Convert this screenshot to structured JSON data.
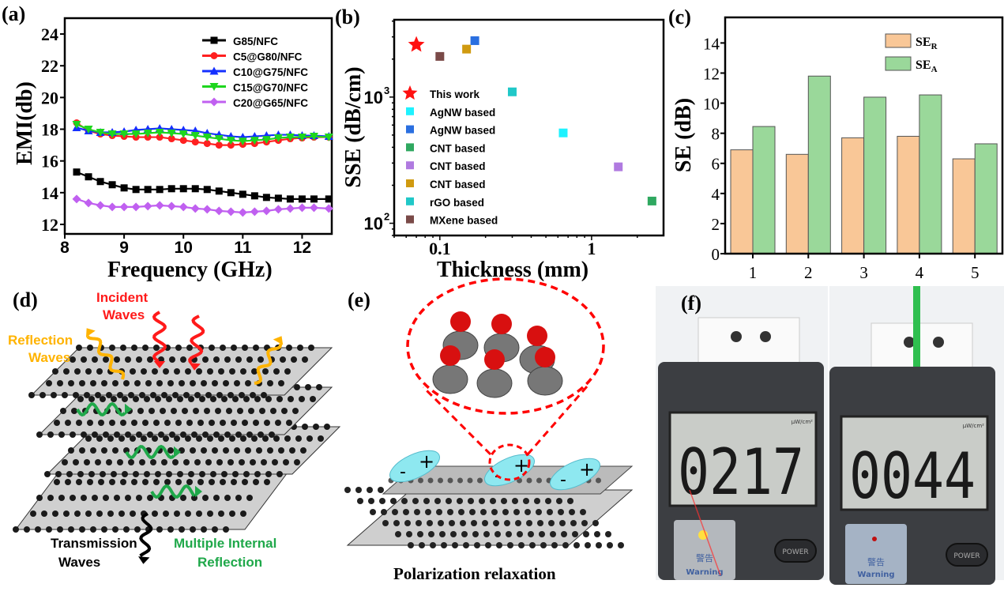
{
  "panels": {
    "a": "(a)",
    "b": "(b)",
    "c": "(c)",
    "d": "(d)",
    "e": "(e)",
    "f": "(f)"
  },
  "chart_data": [
    {
      "type": "line",
      "title": "",
      "xlabel": "Frequency (GHz)",
      "ylabel": "EMI(db)",
      "xlim": [
        8,
        12.5
      ],
      "ylim": [
        11.4,
        25
      ],
      "xticks": [
        8,
        9,
        10,
        11,
        12
      ],
      "yticks": [
        12,
        14,
        16,
        18,
        20,
        22,
        24
      ],
      "legend_position": "top-right",
      "x": [
        8.2,
        8.4,
        8.6,
        8.8,
        9.0,
        9.2,
        9.4,
        9.6,
        9.8,
        10.0,
        10.2,
        10.4,
        10.6,
        10.8,
        11.0,
        11.2,
        11.4,
        11.6,
        11.8,
        12.0,
        12.2,
        12.45
      ],
      "series": [
        {
          "name": "G85/NFC",
          "color": "#000000",
          "marker": "square",
          "values": [
            15.3,
            15.0,
            14.7,
            14.5,
            14.3,
            14.2,
            14.2,
            14.2,
            14.25,
            14.25,
            14.25,
            14.2,
            14.1,
            14.0,
            13.9,
            13.8,
            13.7,
            13.65,
            13.6,
            13.6,
            13.6,
            13.6
          ]
        },
        {
          "name": "C5@G80/NFC",
          "color": "#ff2020",
          "marker": "circle",
          "values": [
            18.4,
            17.9,
            17.7,
            17.6,
            17.55,
            17.5,
            17.5,
            17.5,
            17.4,
            17.3,
            17.2,
            17.1,
            17.0,
            17.0,
            17.05,
            17.1,
            17.2,
            17.3,
            17.4,
            17.45,
            17.5,
            17.5
          ]
        },
        {
          "name": "C10@G75/NFC",
          "color": "#1530ff",
          "marker": "triangle-up",
          "values": [
            18.1,
            17.9,
            17.8,
            17.8,
            17.85,
            17.95,
            18.0,
            18.05,
            18.0,
            17.95,
            17.9,
            17.75,
            17.65,
            17.55,
            17.5,
            17.55,
            17.6,
            17.65,
            17.65,
            17.6,
            17.6,
            17.55
          ]
        },
        {
          "name": "C15@G70/NFC",
          "color": "#1ed61e",
          "marker": "triangle-down",
          "values": [
            18.3,
            18.0,
            17.8,
            17.7,
            17.7,
            17.7,
            17.75,
            17.8,
            17.75,
            17.7,
            17.6,
            17.5,
            17.4,
            17.3,
            17.25,
            17.3,
            17.35,
            17.45,
            17.5,
            17.5,
            17.55,
            17.5
          ]
        },
        {
          "name": "C20@G65/NFC",
          "color": "#c060f0",
          "marker": "diamond",
          "values": [
            13.6,
            13.35,
            13.2,
            13.1,
            13.1,
            13.1,
            13.15,
            13.2,
            13.15,
            13.1,
            13.0,
            12.95,
            12.85,
            12.8,
            12.75,
            12.8,
            12.85,
            12.95,
            13.0,
            13.05,
            13.05,
            13.0
          ]
        }
      ]
    },
    {
      "type": "scatter",
      "title": "",
      "xlabel": "Thickness (mm)",
      "ylabel": "SSE (dB/cm)",
      "xscale": "log",
      "yscale": "log",
      "xlim": [
        0.05,
        2.98
      ],
      "ylim": [
        80,
        4100
      ],
      "xticks": [
        {
          "value": 0.1,
          "label": "0.1"
        },
        {
          "value": 1,
          "label": "1"
        }
      ],
      "yticks": [
        {
          "value": 100,
          "base": "10",
          "exp": "2"
        },
        {
          "value": 1000,
          "base": "10",
          "exp": "3"
        }
      ],
      "legend_position": "center-left",
      "series": [
        {
          "name": "This work",
          "color": "#ff1010",
          "marker": "star",
          "x": 0.07,
          "y": 2600
        },
        {
          "name": "AgNW based",
          "color": "#1ef2ff",
          "marker": "square",
          "x": 0.65,
          "y": 520
        },
        {
          "name": "AgNW based",
          "color": "#2a6fe0",
          "marker": "square",
          "x": 0.17,
          "y": 2800
        },
        {
          "name": "CNT based",
          "color": "#2fa860",
          "marker": "square",
          "x": 2.5,
          "y": 150
        },
        {
          "name": "CNT based",
          "color": "#b07ae0",
          "marker": "square",
          "x": 1.5,
          "y": 280
        },
        {
          "name": "CNT based",
          "color": "#d09a10",
          "marker": "square",
          "x": 0.15,
          "y": 2400
        },
        {
          "name": "rGO based",
          "color": "#20c8c8",
          "marker": "square",
          "x": 0.3,
          "y": 1100
        },
        {
          "name": "MXene based",
          "color": "#7a4a48",
          "marker": "square",
          "x": 0.1,
          "y": 2100
        }
      ]
    },
    {
      "type": "bar",
      "title": "",
      "xlabel": "",
      "ylabel": "SE (dB)",
      "ylim": [
        0,
        15.7
      ],
      "yticks": [
        0,
        2,
        4,
        6,
        8,
        10,
        12,
        14
      ],
      "categories": [
        "1",
        "2",
        "3",
        "4",
        "5"
      ],
      "legend_position": "top-right",
      "series": [
        {
          "name": "SE",
          "sub": "R",
          "color": "#f9c797",
          "values": [
            6.9,
            6.6,
            7.7,
            7.8,
            6.3
          ]
        },
        {
          "name": "SE",
          "sub": "A",
          "color": "#9ad89a",
          "values": [
            8.45,
            11.8,
            10.4,
            10.55,
            7.3
          ]
        }
      ]
    }
  ],
  "diagram_d": {
    "incident": "Incident\nWaves",
    "incident_l1": "Incident",
    "incident_l2": "Waves",
    "reflection_l1": "Reflection",
    "reflection_l2": "Waves",
    "transmission_l1": "Transmission",
    "transmission_l2": "Waves",
    "mir_l1": "Multiple Internal",
    "mir_l2": "Reflection",
    "colors": {
      "incident": "#ff1a1a",
      "reflection": "#ffb300",
      "internal": "#1fa84a"
    }
  },
  "diagram_e": {
    "caption": "Polarization relaxation",
    "minus": "-",
    "plus": "+"
  },
  "photo_f": {
    "left_reading": "0217",
    "right_reading": "0044",
    "unit": "μW/cm²",
    "warning_cn": "警告",
    "warning_en": "Warning",
    "power": "POWER"
  }
}
